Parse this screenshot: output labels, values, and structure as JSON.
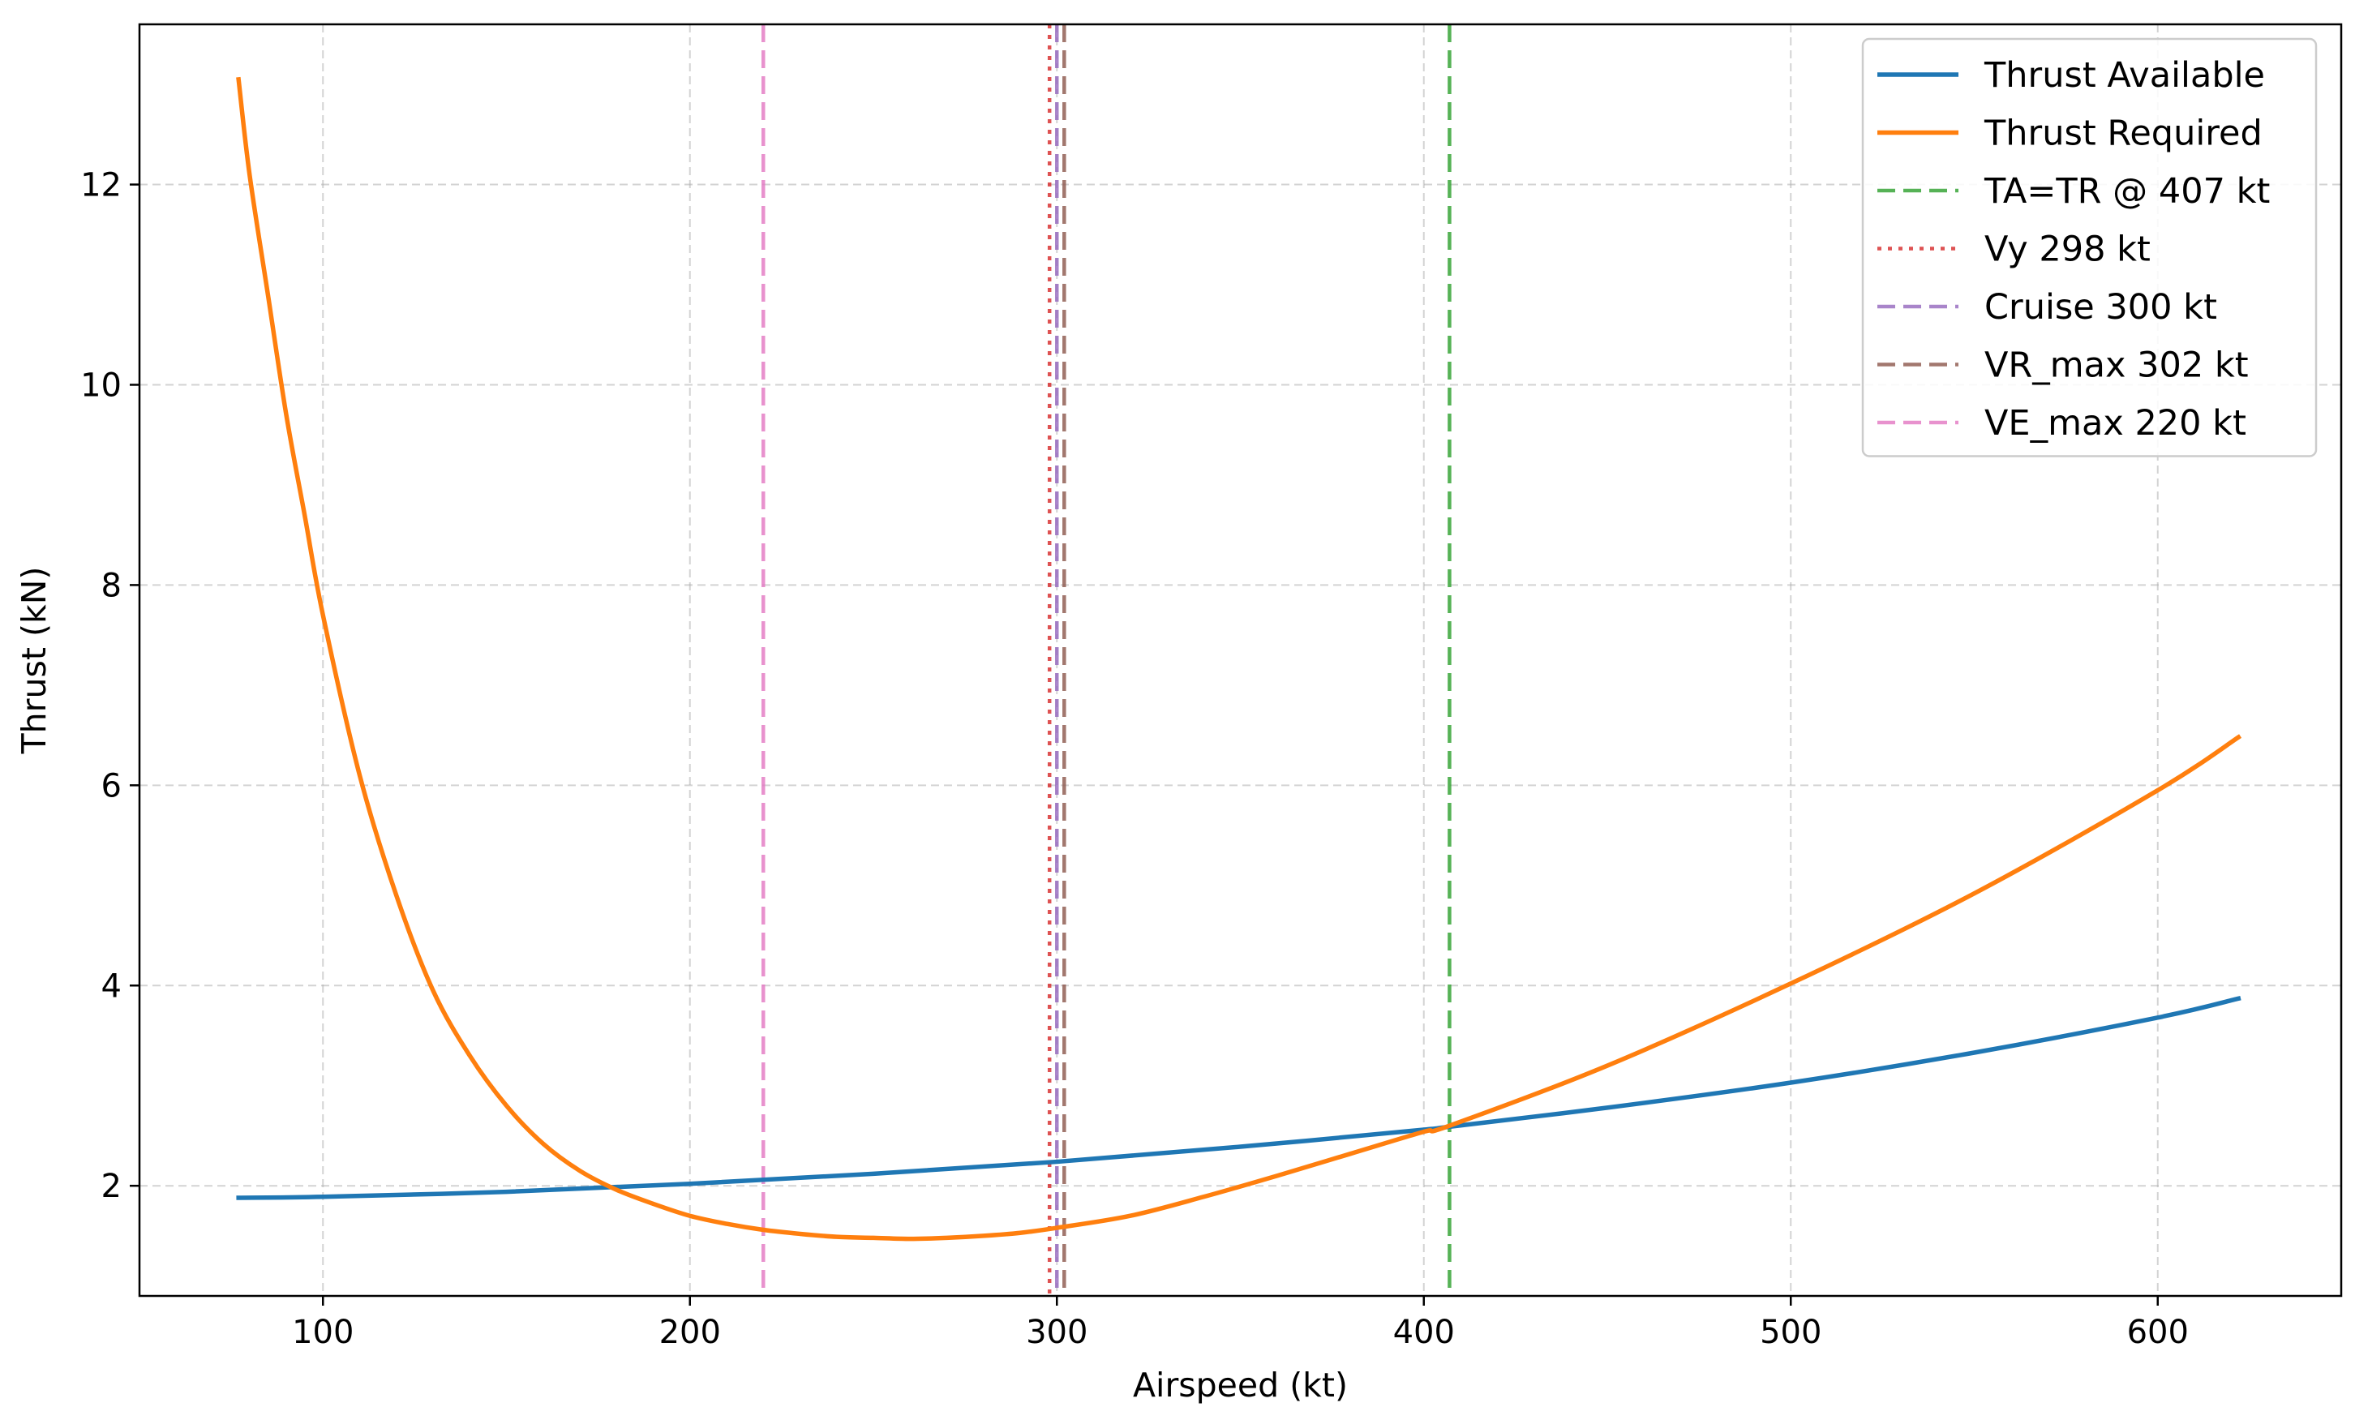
{
  "chart_data": {
    "type": "line",
    "xlabel": "Airspeed (kt)",
    "ylabel": "Thrust (kN)",
    "xlim": [
      50,
      650
    ],
    "ylim": [
      0.9,
      13.6
    ],
    "xticks": [
      100,
      200,
      300,
      400,
      500,
      600
    ],
    "yticks": [
      2,
      4,
      6,
      8,
      10,
      12
    ],
    "grid": true,
    "legend_position": "top-right",
    "series": [
      {
        "name": "Thrust Available",
        "color": "#1f77b4",
        "style": "solid",
        "x": [
          77,
          100,
          150,
          200,
          250,
          300,
          350,
          400,
          407,
          450,
          500,
          550,
          600,
          622
        ],
        "y": [
          1.88,
          1.89,
          1.94,
          2.02,
          2.12,
          2.24,
          2.39,
          2.56,
          2.59,
          2.78,
          3.03,
          3.33,
          3.68,
          3.87
        ]
      },
      {
        "name": "Thrust Required",
        "color": "#ff7f0e",
        "style": "solid",
        "x": [
          77,
          80,
          85,
          90,
          95,
          100,
          110,
          120,
          130,
          140,
          150,
          160,
          170,
          180,
          190,
          200,
          210,
          220,
          230,
          240,
          250,
          260,
          270,
          280,
          290,
          300,
          320,
          340,
          360,
          380,
          400,
          407,
          450,
          500,
          550,
          600,
          622
        ],
        "y": [
          13.05,
          12.1,
          10.9,
          9.7,
          8.7,
          7.7,
          6.1,
          4.9,
          3.95,
          3.3,
          2.8,
          2.42,
          2.15,
          1.96,
          1.82,
          1.7,
          1.62,
          1.56,
          1.52,
          1.49,
          1.48,
          1.47,
          1.48,
          1.5,
          1.53,
          1.58,
          1.7,
          1.89,
          2.1,
          2.32,
          2.54,
          2.6,
          3.2,
          4.02,
          4.92,
          5.95,
          6.48
        ]
      }
    ],
    "vlines": [
      {
        "name": "TA=TR @ 407 kt",
        "x": 407,
        "color": "#2ca02c",
        "style": "dashed"
      },
      {
        "name": "Vy 298 kt",
        "x": 298,
        "color": "#d62728",
        "style": "dotted"
      },
      {
        "name": "Cruise 300 kt",
        "x": 300,
        "color": "#9467bd",
        "style": "dashed"
      },
      {
        "name": "VR_max 302 kt",
        "x": 302,
        "color": "#8c564b",
        "style": "dashed"
      },
      {
        "name": "VE_max 220 kt",
        "x": 220,
        "color": "#e377c2",
        "style": "dashed"
      }
    ]
  }
}
